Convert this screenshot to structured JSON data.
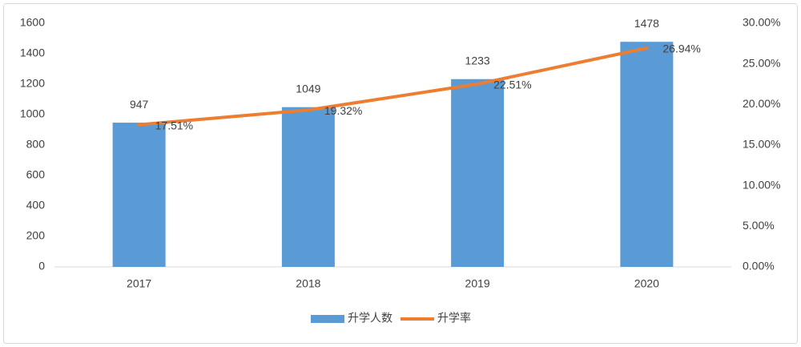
{
  "chart_data": {
    "type": "bar",
    "categories": [
      "2017",
      "2018",
      "2019",
      "2020"
    ],
    "series": [
      {
        "name": "升学人数",
        "type": "bar",
        "color": "#5b9bd5",
        "values": [
          947,
          1049,
          1233,
          1478
        ]
      },
      {
        "name": "升学率",
        "type": "line",
        "axis": "y2",
        "color": "#ed7d31",
        "values": [
          17.51,
          19.32,
          22.51,
          26.94
        ],
        "value_labels": [
          "17.51%",
          "19.32%",
          "22.51%",
          "26.94%"
        ]
      }
    ],
    "ylim": [
      0,
      1600
    ],
    "yticks": [
      0,
      200,
      400,
      600,
      800,
      1000,
      1200,
      1400,
      1600
    ],
    "y2lim": [
      0,
      30
    ],
    "y2ticks": [
      {
        "value": 0,
        "label": "0.00%"
      },
      {
        "value": 5,
        "label": "5.00%"
      },
      {
        "value": 10,
        "label": "10.00%"
      },
      {
        "value": 15,
        "label": "15.00%"
      },
      {
        "value": 20,
        "label": "20.00%"
      },
      {
        "value": 25,
        "label": "25.00%"
      },
      {
        "value": 30,
        "label": "30.00%"
      }
    ],
    "grid": false,
    "legend": "bottom"
  }
}
